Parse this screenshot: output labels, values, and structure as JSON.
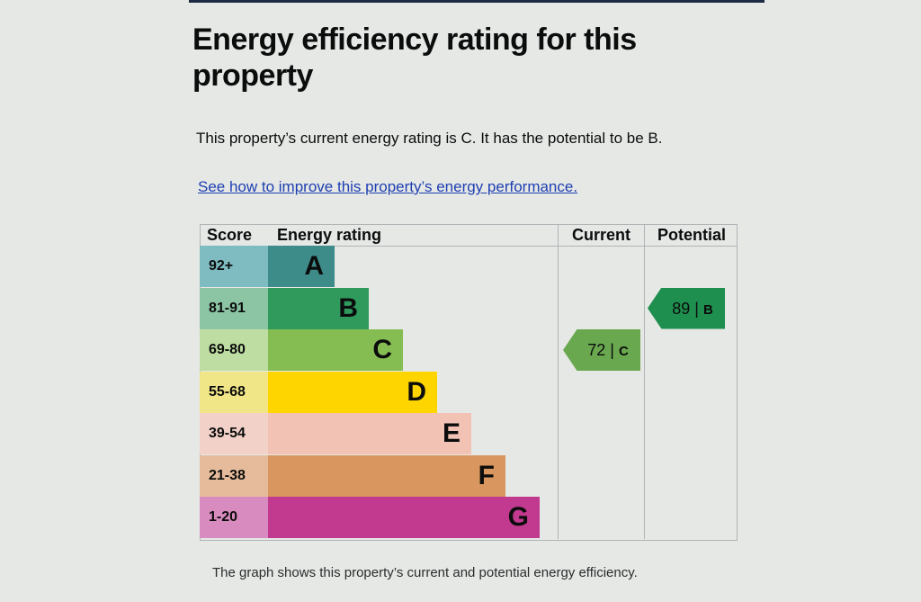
{
  "page": {
    "title": "Energy efficiency rating for this property",
    "summary": "This property’s current energy rating is C. It has the potential to be B.",
    "improve_link": "See how to improve this property’s energy performance.",
    "caption": "The graph shows this property’s current and potential energy efficiency."
  },
  "chart": {
    "headers": {
      "score": "Score",
      "rating": "Energy rating",
      "current": "Current",
      "potential": "Potential"
    },
    "bands": [
      {
        "score": "92+",
        "letter": "A",
        "color": "#3d8c8a",
        "score_bg": "#7fbcc1"
      },
      {
        "score": "81-91",
        "letter": "B",
        "color": "#2f9a5c",
        "score_bg": "#8cc5a4"
      },
      {
        "score": "69-80",
        "letter": "C",
        "color": "#86bd52",
        "score_bg": "#bedda2"
      },
      {
        "score": "55-68",
        "letter": "D",
        "color": "#ffd500",
        "score_bg": "#f1e687"
      },
      {
        "score": "39-54",
        "letter": "E",
        "color": "#f2c2b4",
        "score_bg": "#f2d2c8"
      },
      {
        "score": "21-38",
        "letter": "F",
        "color": "#d9965e",
        "score_bg": "#e6bb9b"
      },
      {
        "score": "1-20",
        "letter": "G",
        "color": "#c23a90",
        "score_bg": "#d88bbe"
      }
    ],
    "current": {
      "score": "72",
      "separator": "|",
      "band": "C",
      "color": "#6aa84f"
    },
    "potential": {
      "score": "89",
      "separator": "|",
      "band": "B",
      "color": "#1e8f4e"
    }
  }
}
